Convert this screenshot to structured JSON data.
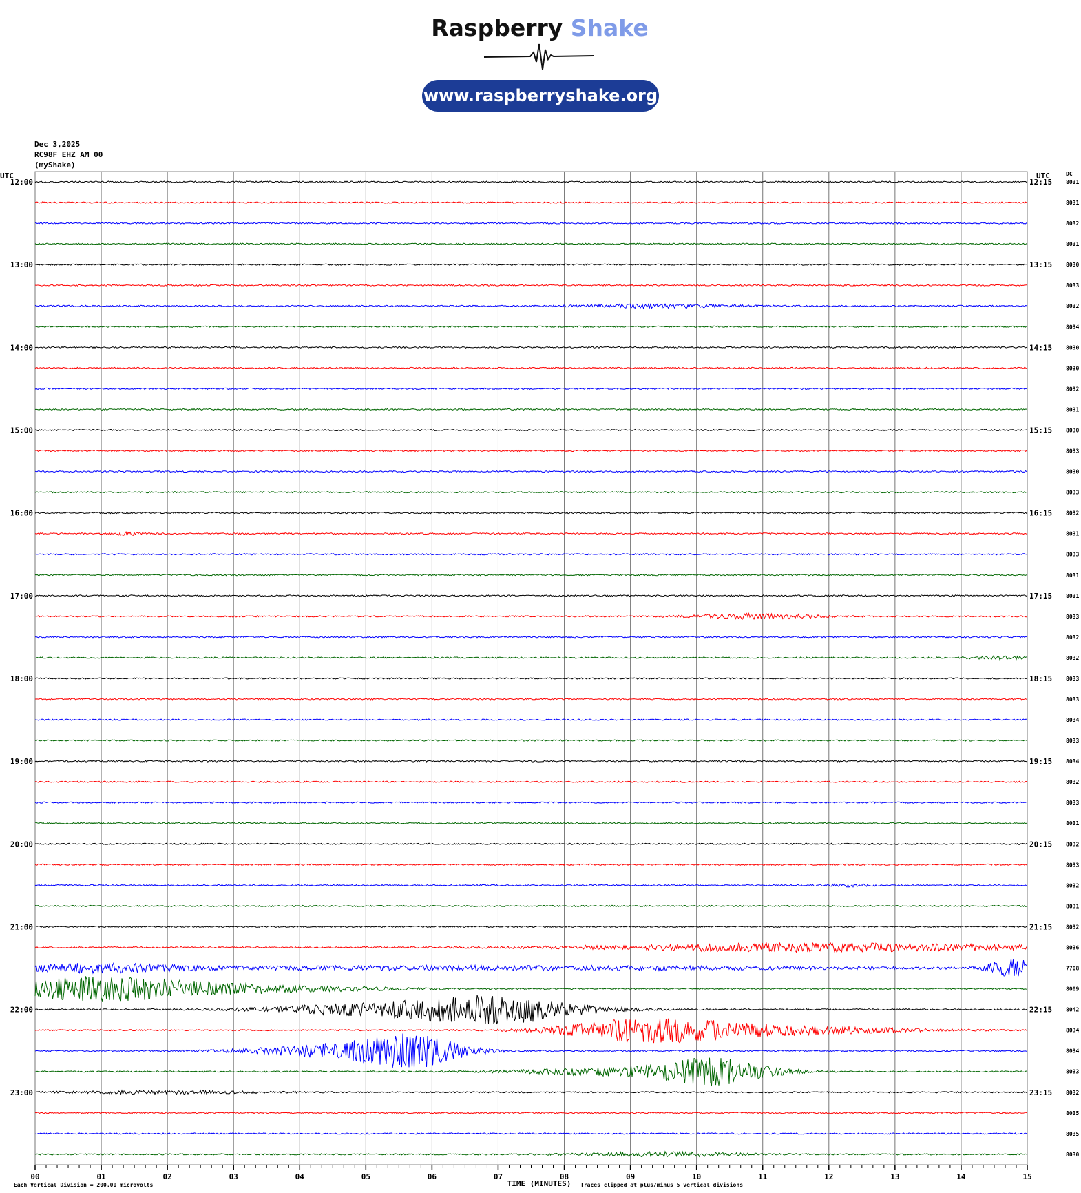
{
  "header": {
    "logo_primary": "Raspberry",
    "logo_secondary": "Shake",
    "url": "www.raspberryshake.org"
  },
  "chart_data": {
    "type": "helicorder",
    "date": "Dec 3,2025",
    "station": "RC98F EHZ AM 00",
    "source": "(myShake)",
    "left_axis_label": "UTC",
    "right_axis_label": "UTC",
    "dc_label": "DC",
    "left_labels": [
      "12:00",
      "13:00",
      "14:00",
      "15:00",
      "16:00",
      "17:00",
      "18:00",
      "19:00",
      "20:00",
      "21:00",
      "22:00",
      "23:00"
    ],
    "right_labels": [
      "12:15",
      "13:15",
      "14:15",
      "15:15",
      "16:15",
      "17:15",
      "18:15",
      "19:15",
      "20:15",
      "21:15",
      "22:15",
      "23:15"
    ],
    "dc_values": [
      8031,
      8031,
      8032,
      8031,
      8030,
      8033,
      8032,
      8034,
      8030,
      8030,
      8032,
      8031,
      8030,
      8033,
      8030,
      8033,
      8032,
      8031,
      8033,
      8031,
      8031,
      8033,
      8032,
      8032,
      8033,
      8033,
      8034,
      8033,
      8034,
      8032,
      8033,
      8031,
      8032,
      8033,
      8032,
      8031,
      8032,
      8036,
      7708,
      8009,
      8042,
      8034,
      8034,
      8033,
      8032,
      8035,
      8035,
      8030
    ],
    "colors": [
      "#000000",
      "#ff0000",
      "#0000ff",
      "#006600"
    ],
    "xlim": [
      0,
      15
    ],
    "xticks": [
      {
        "value": 0,
        "label": "00"
      },
      {
        "value": 1,
        "label": "01"
      },
      {
        "value": 2,
        "label": "02"
      },
      {
        "value": 3,
        "label": "03"
      },
      {
        "value": 4,
        "label": "04"
      },
      {
        "value": 5,
        "label": "05"
      },
      {
        "value": 6,
        "label": "06"
      },
      {
        "value": 7,
        "label": "07"
      },
      {
        "value": 8,
        "label": "08"
      },
      {
        "value": 9,
        "label": "09"
      },
      {
        "value": 10,
        "label": "10"
      },
      {
        "value": 11,
        "label": "11"
      },
      {
        "value": 12,
        "label": "12"
      },
      {
        "value": 13,
        "label": "13"
      },
      {
        "value": 14,
        "label": "14"
      },
      {
        "value": 15,
        "label": "15"
      }
    ],
    "grid": true,
    "x_label": "TIME (MINUTES)",
    "scale_note": "Each Vertical Division =  200.00 microvolts",
    "clip_note": "Traces clipped at plus/minus 5 vertical divisions"
  }
}
